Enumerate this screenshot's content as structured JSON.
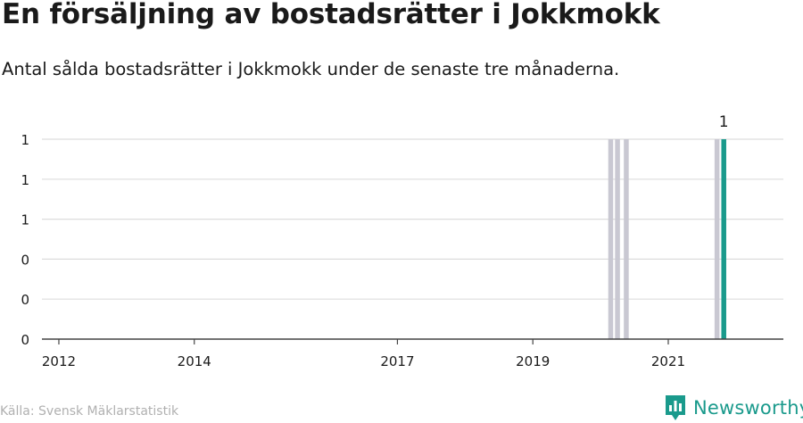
{
  "chart_data": {
    "type": "bar",
    "title": "En försäljning av bostadsrätter i Jokkmokk",
    "subtitle": "Antal sålda bostadsrätter i Jokkmokk under de senaste tre månaderna.",
    "xlabel": "",
    "ylabel": "",
    "ylim": [
      0,
      1
    ],
    "y_ticks": [
      {
        "value": 0,
        "label": "0"
      },
      {
        "value": 0.2,
        "label": "0"
      },
      {
        "value": 0.4,
        "label": "0"
      },
      {
        "value": 0.6,
        "label": "1"
      },
      {
        "value": 0.8,
        "label": "1"
      },
      {
        "value": 1.0,
        "label": "1"
      }
    ],
    "x_range": [
      2011.75,
      2022.7
    ],
    "x_ticks": [
      {
        "value": 2012,
        "label": "2012"
      },
      {
        "value": 2014,
        "label": "2014"
      },
      {
        "value": 2017,
        "label": "2017"
      },
      {
        "value": 2019,
        "label": "2019"
      },
      {
        "value": 2021,
        "label": "2021"
      }
    ],
    "bars": [
      {
        "x": 2020.15,
        "value": 1,
        "highlight": false
      },
      {
        "x": 2020.25,
        "value": 1,
        "highlight": false
      },
      {
        "x": 2020.38,
        "value": 1,
        "highlight": false
      },
      {
        "x": 2021.72,
        "value": 1,
        "highlight": false
      },
      {
        "x": 2021.82,
        "value": 1,
        "highlight": true,
        "label": "1"
      }
    ],
    "colors": {
      "bar": "#c9c8d2",
      "highlight": "#1a9a8c",
      "grid": "#dddddd",
      "axis": "#444444"
    },
    "grid": true
  },
  "source": "Källa: Svensk Mäklarstatistik",
  "brand": {
    "name": "Newsworthy",
    "icon": "newsworthy-logo-icon",
    "color": "#1a9a8c"
  }
}
